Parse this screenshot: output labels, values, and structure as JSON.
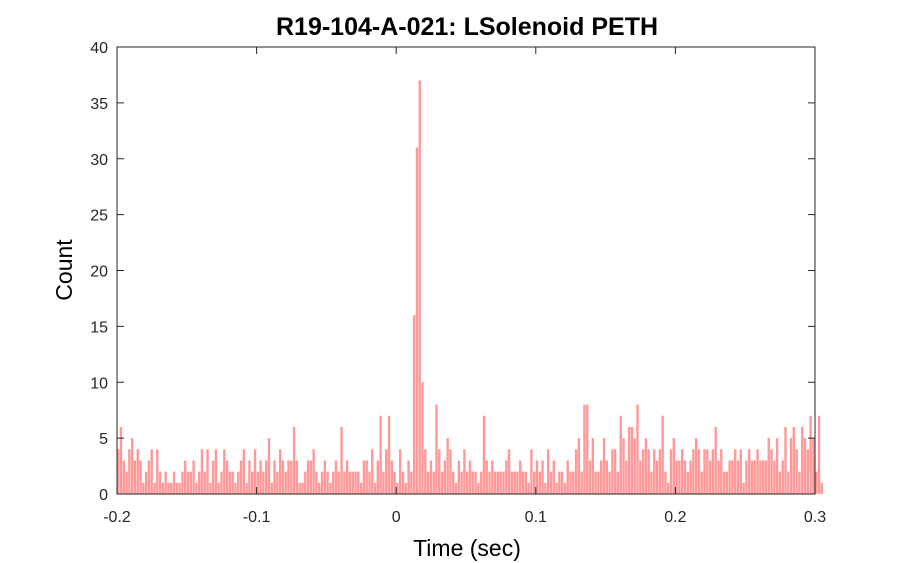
{
  "chart_data": {
    "type": "bar",
    "title": "R19-104-A-021: LSolenoid PETH",
    "xlabel": "Time (sec)",
    "ylabel": "Count",
    "xlim": [
      -0.2,
      0.3
    ],
    "ylim": [
      0,
      40
    ],
    "xticks": [
      -0.2,
      -0.1,
      0,
      0.1,
      0.2,
      0.3
    ],
    "xtick_labels": [
      "-0.2",
      "-0.1",
      "0",
      "0.1",
      "0.2",
      "0.3"
    ],
    "yticks": [
      0,
      5,
      10,
      15,
      20,
      25,
      30,
      35,
      40
    ],
    "ytick_labels": [
      "0",
      "5",
      "10",
      "15",
      "20",
      "25",
      "30",
      "35",
      "40"
    ],
    "bin_width": 0.002,
    "bin_start": -0.2,
    "bar_color": "#ff9999",
    "values": [
      4,
      6,
      3,
      2,
      4,
      5,
      3,
      4,
      3,
      1,
      2,
      3,
      4,
      1,
      4,
      2,
      1,
      2,
      1,
      1,
      2,
      1,
      1,
      2,
      3,
      2,
      2,
      3,
      1,
      2,
      4,
      2,
      4,
      1,
      3,
      4,
      1,
      2,
      4,
      3,
      2,
      2,
      1,
      2,
      3,
      4,
      1,
      3,
      2,
      4,
      2,
      3,
      2,
      3,
      5,
      1,
      3,
      2,
      4,
      3,
      2,
      3,
      3,
      6,
      3,
      1,
      1,
      2,
      3,
      3,
      4,
      2,
      1,
      2,
      3,
      2,
      1,
      2,
      3,
      2,
      6,
      2,
      3,
      2,
      2,
      2,
      2,
      1,
      3,
      3,
      2,
      4,
      1,
      3,
      7,
      2,
      4,
      7,
      3,
      2,
      1,
      4,
      2,
      1,
      3,
      2,
      16,
      31,
      37,
      10,
      4,
      2,
      3,
      2,
      8,
      4,
      2,
      3,
      5,
      4,
      2,
      1,
      3,
      2,
      4,
      2,
      3,
      2,
      2,
      1,
      2,
      7,
      3,
      2,
      3,
      2,
      2,
      2,
      2,
      3,
      4,
      2,
      2,
      2,
      3,
      2,
      2,
      1,
      4,
      2,
      3,
      2,
      3,
      1,
      4,
      2,
      3,
      1,
      2,
      2,
      1,
      3,
      2,
      2,
      4,
      5,
      2,
      8,
      8,
      3,
      5,
      2,
      2,
      3,
      5,
      3,
      2,
      4,
      4,
      2,
      7,
      5,
      3,
      6,
      6,
      5,
      8,
      3,
      4,
      5,
      4,
      2,
      4,
      3,
      4,
      7,
      2,
      1,
      4,
      5,
      3,
      3,
      4,
      3,
      2,
      3,
      4,
      5,
      4,
      2,
      4,
      4,
      3,
      4,
      6,
      3,
      4,
      2,
      2,
      3,
      3,
      4,
      3,
      4,
      1,
      3,
      4,
      3,
      3,
      4,
      3,
      3,
      3,
      5,
      4,
      3,
      5,
      2,
      3,
      6,
      2,
      5,
      6,
      4,
      2,
      6,
      5,
      4,
      7,
      5,
      2,
      7,
      1
    ]
  }
}
